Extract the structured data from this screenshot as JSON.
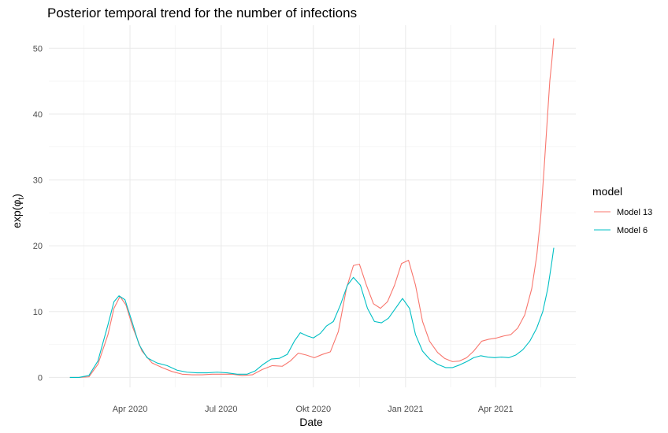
{
  "chart_data": {
    "type": "line",
    "title": "Posterior temporal trend for the number of infections",
    "xlabel": "Date",
    "ylabel": "exp(φ",
    "ylabel_sub": "t",
    "ylabel_close": ")",
    "legend_title": "model",
    "legend_position": "right",
    "grid": true,
    "ylim": [
      -1.5,
      53.5
    ],
    "xlim": [
      "2020-01-11",
      "2021-06-20"
    ],
    "y_ticks": [
      0,
      10,
      20,
      30,
      40,
      50
    ],
    "x_ticks": [
      {
        "date": "2020-04-01",
        "label": "Apr 2020"
      },
      {
        "date": "2020-07-01",
        "label": "Jul 2020"
      },
      {
        "date": "2020-10-01",
        "label": "Okt 2020"
      },
      {
        "date": "2021-01-01",
        "label": "Jan 2021"
      },
      {
        "date": "2021-04-01",
        "label": "Apr 2021"
      }
    ],
    "x_minor_ticks": [
      "2020-02-15",
      "2020-05-16",
      "2020-08-16",
      "2020-11-16",
      "2021-02-15",
      "2021-05-16"
    ],
    "series": [
      {
        "name": "Model 13",
        "color": "#F8766D",
        "points": [
          [
            "2020-02-01",
            0.0
          ],
          [
            "2020-02-10",
            0.0
          ],
          [
            "2020-02-20",
            0.1
          ],
          [
            "2020-02-29",
            2.0
          ],
          [
            "2020-03-10",
            6.5
          ],
          [
            "2020-03-16",
            10.5
          ],
          [
            "2020-03-22",
            12.3
          ],
          [
            "2020-03-28",
            11.0
          ],
          [
            "2020-04-04",
            7.5
          ],
          [
            "2020-04-13",
            4.0
          ],
          [
            "2020-04-23",
            2.2
          ],
          [
            "2020-05-03",
            1.5
          ],
          [
            "2020-05-13",
            0.9
          ],
          [
            "2020-05-23",
            0.5
          ],
          [
            "2020-06-02",
            0.4
          ],
          [
            "2020-06-12",
            0.4
          ],
          [
            "2020-06-22",
            0.5
          ],
          [
            "2020-07-02",
            0.5
          ],
          [
            "2020-07-12",
            0.5
          ],
          [
            "2020-07-22",
            0.3
          ],
          [
            "2020-08-01",
            0.4
          ],
          [
            "2020-08-11",
            1.2
          ],
          [
            "2020-08-21",
            1.8
          ],
          [
            "2020-08-31",
            1.7
          ],
          [
            "2020-09-08",
            2.5
          ],
          [
            "2020-09-16",
            3.7
          ],
          [
            "2020-09-24",
            3.4
          ],
          [
            "2020-10-02",
            3.0
          ],
          [
            "2020-10-10",
            3.5
          ],
          [
            "2020-10-18",
            3.9
          ],
          [
            "2020-10-26",
            7.0
          ],
          [
            "2020-11-03",
            13.5
          ],
          [
            "2020-11-10",
            17.0
          ],
          [
            "2020-11-16",
            17.2
          ],
          [
            "2020-11-23",
            14.0
          ],
          [
            "2020-11-30",
            11.2
          ],
          [
            "2020-12-07",
            10.5
          ],
          [
            "2020-12-14",
            11.5
          ],
          [
            "2020-12-21",
            14.0
          ],
          [
            "2020-12-28",
            17.3
          ],
          [
            "2021-01-04",
            17.8
          ],
          [
            "2021-01-11",
            14.0
          ],
          [
            "2021-01-18",
            8.5
          ],
          [
            "2021-01-25",
            5.5
          ],
          [
            "2021-02-02",
            3.8
          ],
          [
            "2021-02-09",
            2.9
          ],
          [
            "2021-02-17",
            2.4
          ],
          [
            "2021-02-24",
            2.5
          ],
          [
            "2021-03-03",
            3.0
          ],
          [
            "2021-03-10",
            4.0
          ],
          [
            "2021-03-18",
            5.5
          ],
          [
            "2021-03-25",
            5.8
          ],
          [
            "2021-04-02",
            6.0
          ],
          [
            "2021-04-09",
            6.3
          ],
          [
            "2021-04-16",
            6.5
          ],
          [
            "2021-04-23",
            7.5
          ],
          [
            "2021-04-30",
            9.5
          ],
          [
            "2021-05-07",
            13.5
          ],
          [
            "2021-05-12",
            18.5
          ],
          [
            "2021-05-16",
            24.5
          ],
          [
            "2021-05-19",
            31.0
          ],
          [
            "2021-05-22",
            38.0
          ],
          [
            "2021-05-25",
            45.0
          ],
          [
            "2021-05-27",
            48.0
          ],
          [
            "2021-05-29",
            51.5
          ]
        ]
      },
      {
        "name": "Model 6",
        "color": "#00BFC4",
        "points": [
          [
            "2020-02-01",
            0.0
          ],
          [
            "2020-02-10",
            0.0
          ],
          [
            "2020-02-20",
            0.3
          ],
          [
            "2020-02-29",
            2.5
          ],
          [
            "2020-03-10",
            8.0
          ],
          [
            "2020-03-16",
            11.5
          ],
          [
            "2020-03-21",
            12.4
          ],
          [
            "2020-03-27",
            11.8
          ],
          [
            "2020-04-03",
            8.5
          ],
          [
            "2020-04-10",
            5.0
          ],
          [
            "2020-04-18",
            3.0
          ],
          [
            "2020-04-28",
            2.2
          ],
          [
            "2020-05-08",
            1.8
          ],
          [
            "2020-05-18",
            1.1
          ],
          [
            "2020-05-28",
            0.8
          ],
          [
            "2020-06-07",
            0.7
          ],
          [
            "2020-06-17",
            0.7
          ],
          [
            "2020-06-27",
            0.8
          ],
          [
            "2020-07-07",
            0.7
          ],
          [
            "2020-07-17",
            0.5
          ],
          [
            "2020-07-27",
            0.5
          ],
          [
            "2020-08-04",
            1.0
          ],
          [
            "2020-08-12",
            2.0
          ],
          [
            "2020-08-20",
            2.8
          ],
          [
            "2020-08-28",
            2.9
          ],
          [
            "2020-09-05",
            3.5
          ],
          [
            "2020-09-12",
            5.5
          ],
          [
            "2020-09-18",
            6.8
          ],
          [
            "2020-09-25",
            6.3
          ],
          [
            "2020-10-01",
            6.0
          ],
          [
            "2020-10-08",
            6.7
          ],
          [
            "2020-10-14",
            7.8
          ],
          [
            "2020-10-21",
            8.5
          ],
          [
            "2020-10-28",
            11.0
          ],
          [
            "2020-11-04",
            14.0
          ],
          [
            "2020-11-10",
            15.2
          ],
          [
            "2020-11-17",
            14.0
          ],
          [
            "2020-11-24",
            10.5
          ],
          [
            "2020-12-01",
            8.5
          ],
          [
            "2020-12-08",
            8.3
          ],
          [
            "2020-12-15",
            9.0
          ],
          [
            "2020-12-22",
            10.5
          ],
          [
            "2020-12-29",
            12.0
          ],
          [
            "2021-01-05",
            10.5
          ],
          [
            "2021-01-11",
            6.5
          ],
          [
            "2021-01-18",
            4.0
          ],
          [
            "2021-01-25",
            2.8
          ],
          [
            "2021-02-02",
            2.0
          ],
          [
            "2021-02-10",
            1.5
          ],
          [
            "2021-02-17",
            1.5
          ],
          [
            "2021-02-24",
            1.9
          ],
          [
            "2021-03-03",
            2.4
          ],
          [
            "2021-03-10",
            3.0
          ],
          [
            "2021-03-17",
            3.3
          ],
          [
            "2021-03-24",
            3.1
          ],
          [
            "2021-03-31",
            3.0
          ],
          [
            "2021-04-07",
            3.1
          ],
          [
            "2021-04-14",
            3.0
          ],
          [
            "2021-04-21",
            3.4
          ],
          [
            "2021-04-28",
            4.2
          ],
          [
            "2021-05-05",
            5.5
          ],
          [
            "2021-05-12",
            7.5
          ],
          [
            "2021-05-18",
            10.0
          ],
          [
            "2021-05-23",
            13.5
          ],
          [
            "2021-05-27",
            17.5
          ],
          [
            "2021-05-29",
            19.7
          ]
        ]
      }
    ]
  }
}
